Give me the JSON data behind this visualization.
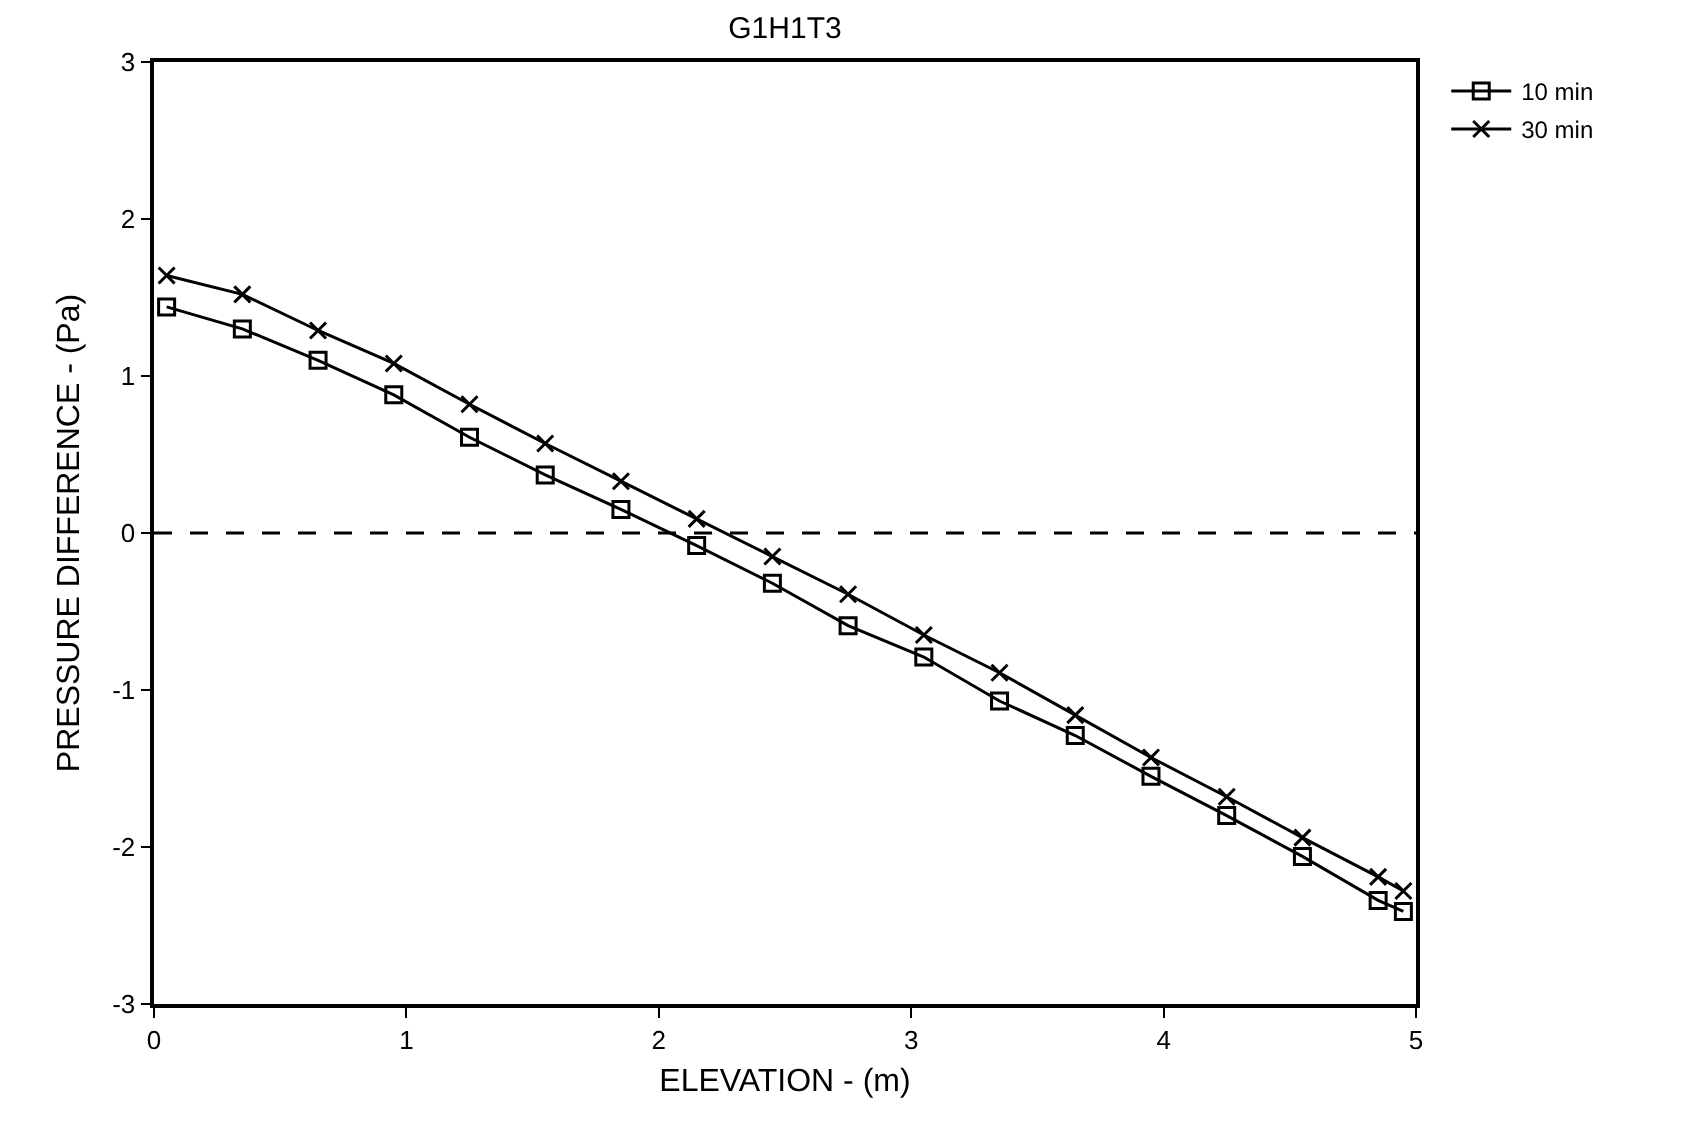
{
  "chart_data": {
    "type": "line",
    "title": "G1H1T3",
    "xlabel": "ELEVATION - (m)",
    "ylabel": "PRESSURE DIFFERENCE - (Pa)",
    "x": [
      0.05,
      0.35,
      0.65,
      0.95,
      1.25,
      1.55,
      1.85,
      2.15,
      2.45,
      2.75,
      3.05,
      3.35,
      3.65,
      3.95,
      4.25,
      4.55,
      4.85,
      4.95
    ],
    "series": [
      {
        "name": "10 min",
        "color": "#000000",
        "marker": "square",
        "values": [
          1.44,
          1.3,
          1.1,
          0.88,
          0.61,
          0.37,
          0.15,
          -0.08,
          -0.32,
          -0.59,
          -0.79,
          -1.07,
          -1.29,
          -1.55,
          -1.8,
          -2.06,
          -2.34,
          -2.41
        ]
      },
      {
        "name": "30 min",
        "color": "#000000",
        "marker": "cross",
        "values": [
          1.64,
          1.52,
          1.29,
          1.08,
          0.82,
          0.57,
          0.33,
          0.09,
          -0.15,
          -0.39,
          -0.65,
          -0.89,
          -1.16,
          -1.43,
          -1.68,
          -1.94,
          -2.19,
          -2.28
        ]
      }
    ],
    "xlim": [
      0,
      5
    ],
    "xticks": [
      0,
      1,
      2,
      3,
      4,
      5
    ],
    "ylim": [
      -3,
      3
    ],
    "yticks": [
      -3,
      -2,
      -1,
      0,
      1,
      2,
      3
    ],
    "ref_lines": [
      {
        "axis": "y",
        "value": 0,
        "line_style": "dashed"
      }
    ],
    "grid": false,
    "legend": "top right",
    "line_style": "solid"
  }
}
